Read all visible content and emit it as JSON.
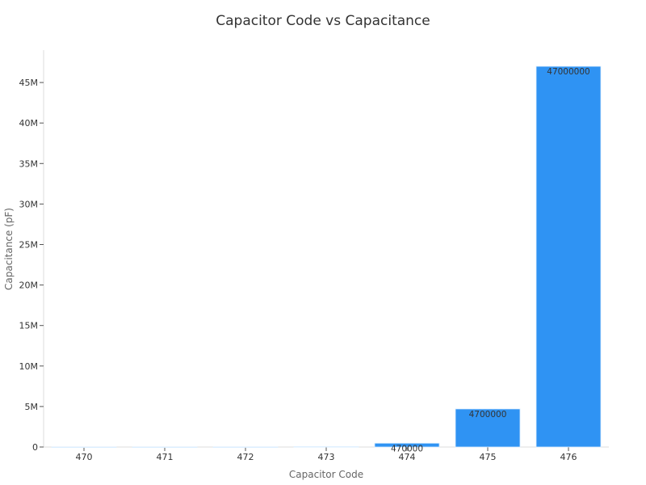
{
  "chart_data": {
    "type": "bar",
    "title": "Capacitor Code vs Capacitance",
    "xlabel": "Capacitor Code",
    "ylabel": "Capacitance (pF)",
    "categories": [
      "470",
      "471",
      "472",
      "473",
      "474",
      "475",
      "476"
    ],
    "values": [
      47,
      470,
      4700,
      47000,
      470000,
      4700000,
      47000000
    ],
    "data_labels": [
      "",
      "",
      "",
      "",
      "470000",
      "4700000",
      "47000000"
    ],
    "ylim": [
      0,
      49000000
    ],
    "yticks": [
      0,
      5000000,
      10000000,
      15000000,
      20000000,
      25000000,
      30000000,
      35000000,
      40000000,
      45000000
    ],
    "ytick_labels": [
      "0",
      "5M",
      "10M",
      "15M",
      "20M",
      "25M",
      "30M",
      "35M",
      "40M",
      "45M"
    ],
    "grid": false,
    "legend": "none",
    "colors": {
      "bar": "#2f93f3",
      "bar_edge": "#dbeeff",
      "axis": "#dddddd"
    }
  }
}
